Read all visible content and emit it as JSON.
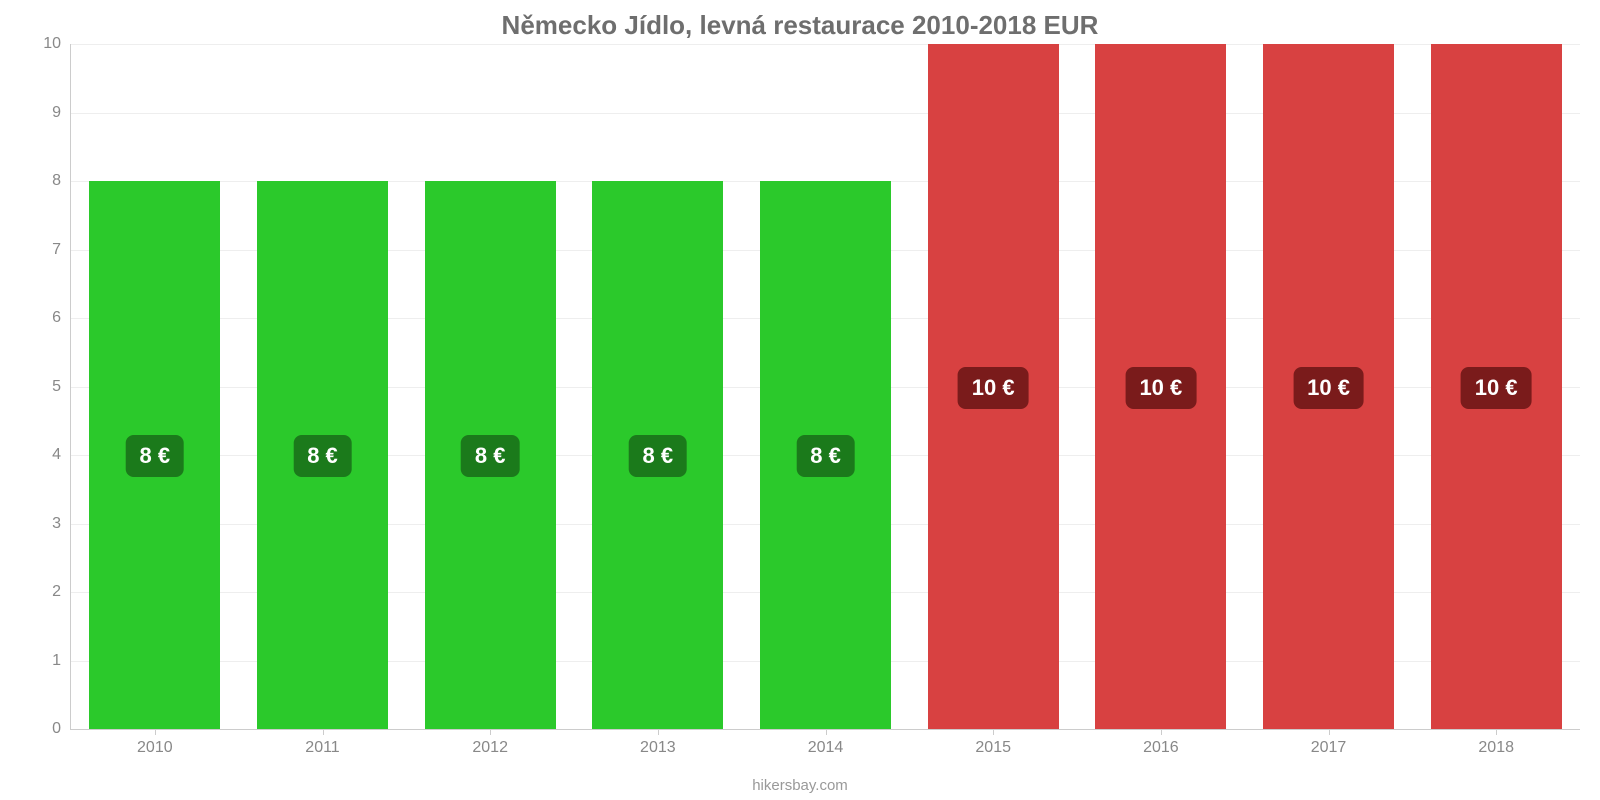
{
  "chart": {
    "type": "bar",
    "title": "Německo Jídlo, levná restaurace 2010-2018 EUR",
    "title_color": "#6e6e6e",
    "title_fontsize": 26,
    "background_color": "#ffffff",
    "grid_color": "#eeeeee",
    "axis_color": "#cccccc",
    "tick_label_color": "#888888",
    "tick_fontsize": 16,
    "categories": [
      "2010",
      "2011",
      "2012",
      "2013",
      "2014",
      "2015",
      "2016",
      "2017",
      "2018"
    ],
    "values": [
      8,
      8,
      8,
      8,
      8,
      10,
      10,
      10,
      10
    ],
    "value_labels": [
      "8 €",
      "8 €",
      "8 €",
      "8 €",
      "8 €",
      "10 €",
      "10 €",
      "10 €",
      "10 €"
    ],
    "bar_colors": [
      "#2bc92b",
      "#2bc92b",
      "#2bc92b",
      "#2bc92b",
      "#2bc92b",
      "#d84141",
      "#d84141",
      "#d84141",
      "#d84141"
    ],
    "badge_colors": [
      "#1b7a1b",
      "#1b7a1b",
      "#1b7a1b",
      "#1b7a1b",
      "#1b7a1b",
      "#7a1b1b",
      "#7a1b1b",
      "#7a1b1b",
      "#7a1b1b"
    ],
    "badge_text_color": "#ffffff",
    "badge_fontsize": 22,
    "ylim": [
      0,
      10
    ],
    "ytick_step": 1,
    "yticks": [
      "0",
      "1",
      "2",
      "3",
      "4",
      "5",
      "6",
      "7",
      "8",
      "9",
      "10"
    ],
    "bar_width_ratio": 0.78,
    "attribution": "hikersbay.com",
    "attribution_color": "#999999"
  }
}
